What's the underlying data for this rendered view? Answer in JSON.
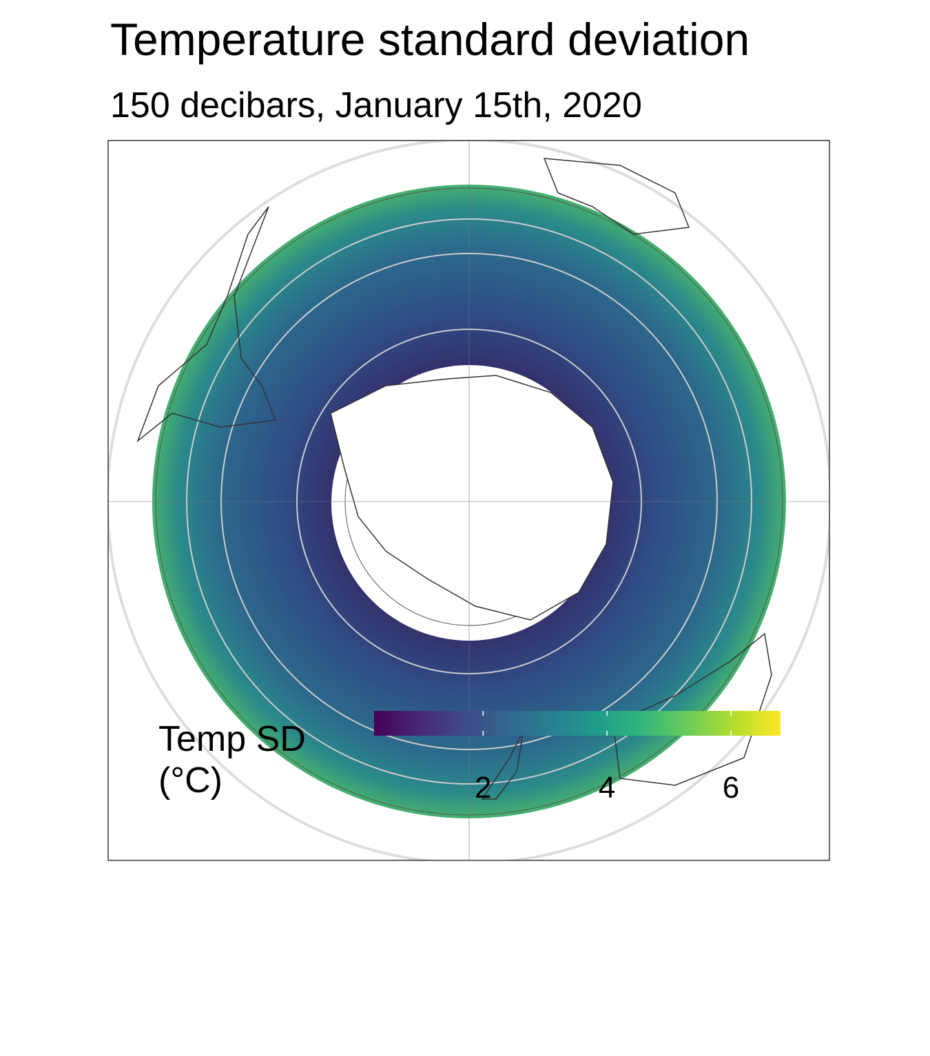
{
  "title": "Temperature standard deviation",
  "subtitle": "150 decibars, January 15th, 2020",
  "legend": {
    "title": [
      "Temp SD",
      "(°C)"
    ],
    "lim": [
      0.24,
      6.8
    ],
    "ticks": [
      2,
      4,
      6
    ],
    "colors": [
      "#440154",
      "#482878",
      "#3e4a89",
      "#31688e",
      "#26828e",
      "#1f9e89",
      "#35b779",
      "#6ece58",
      "#b5de2b",
      "#fde725"
    ]
  }
}
